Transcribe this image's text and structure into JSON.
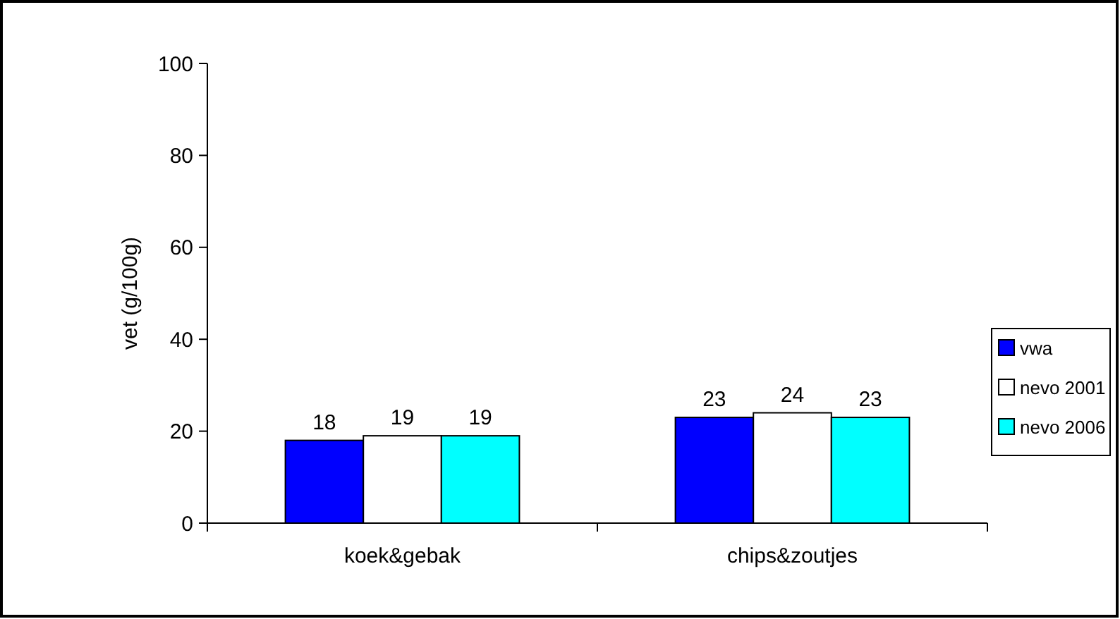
{
  "chart_data": {
    "type": "bar",
    "ylabel": "vet (g/100g)",
    "categories": [
      "koek&gebak",
      "chips&zoutjes"
    ],
    "series": [
      {
        "name": "vwa",
        "color": "#0000ff",
        "values": [
          18,
          23
        ]
      },
      {
        "name": "nevo 2001",
        "color": "#ffffff",
        "values": [
          19,
          24
        ]
      },
      {
        "name": "nevo 2006",
        "color": "#00ffff",
        "values": [
          19,
          23
        ]
      }
    ],
    "ylim": [
      0,
      100
    ],
    "yticks": [
      0,
      20,
      40,
      60,
      80,
      100
    ],
    "grid": false,
    "legend": "right",
    "data_labels": true
  }
}
